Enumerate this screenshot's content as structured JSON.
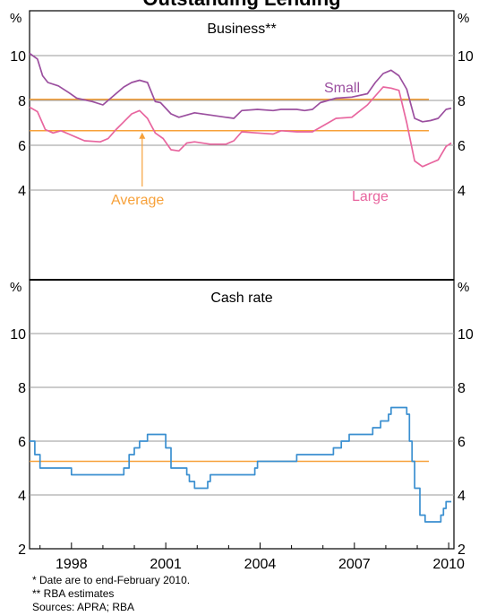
{
  "chart_data": {
    "type": "line",
    "title": "Outstanding Lending",
    "x_ticks": [
      "1998",
      "2001",
      "2004",
      "2007",
      "2010"
    ],
    "panels": [
      {
        "title": "Business**",
        "ylabel_left": "%",
        "ylabel_right": "%",
        "ylim": [
          0,
          12
        ],
        "y_ticks": [
          4,
          6,
          8,
          10
        ],
        "series": [
          {
            "name": "Small",
            "color": "#9b4f9f",
            "points": [
              [
                "1996-09",
                10.1
              ],
              [
                "1996-12",
                9.85
              ],
              [
                "1997-02",
                9.1
              ],
              [
                "1997-04",
                8.8
              ],
              [
                "1997-08",
                8.65
              ],
              [
                "1997-12",
                8.35
              ],
              [
                "1998-03",
                8.1
              ],
              [
                "1998-09",
                7.95
              ],
              [
                "1999-01",
                7.8
              ],
              [
                "1999-05",
                8.2
              ],
              [
                "1999-09",
                8.6
              ],
              [
                "1999-12",
                8.8
              ],
              [
                "2000-03",
                8.9
              ],
              [
                "2000-06",
                8.8
              ],
              [
                "2000-09",
                7.95
              ],
              [
                "2000-11",
                7.9
              ],
              [
                "2001-03",
                7.4
              ],
              [
                "2001-06",
                7.25
              ],
              [
                "2001-09",
                7.35
              ],
              [
                "2001-12",
                7.45
              ],
              [
                "2002-06",
                7.35
              ],
              [
                "2002-12",
                7.25
              ],
              [
                "2003-03",
                7.2
              ],
              [
                "2003-06",
                7.55
              ],
              [
                "2003-12",
                7.6
              ],
              [
                "2004-06",
                7.55
              ],
              [
                "2004-09",
                7.6
              ],
              [
                "2005-03",
                7.6
              ],
              [
                "2005-06",
                7.55
              ],
              [
                "2005-09",
                7.6
              ],
              [
                "2005-12",
                7.9
              ],
              [
                "2006-06",
                8.1
              ],
              [
                "2006-12",
                8.15
              ],
              [
                "2007-06",
                8.3
              ],
              [
                "2007-09",
                8.8
              ],
              [
                "2007-12",
                9.2
              ],
              [
                "2008-03",
                9.35
              ],
              [
                "2008-06",
                9.1
              ],
              [
                "2008-09",
                8.5
              ],
              [
                "2008-12",
                7.2
              ],
              [
                "2009-03",
                7.05
              ],
              [
                "2009-06",
                7.1
              ],
              [
                "2009-09",
                7.2
              ],
              [
                "2009-12",
                7.6
              ],
              [
                "2010-02",
                7.65
              ]
            ]
          },
          {
            "name": "Large",
            "color": "#e8669f",
            "points": [
              [
                "1996-09",
                7.7
              ],
              [
                "1996-12",
                7.5
              ],
              [
                "1997-03",
                6.7
              ],
              [
                "1997-06",
                6.55
              ],
              [
                "1997-09",
                6.65
              ],
              [
                "1997-12",
                6.5
              ],
              [
                "1998-03",
                6.35
              ],
              [
                "1998-06",
                6.2
              ],
              [
                "1998-12",
                6.15
              ],
              [
                "1999-03",
                6.3
              ],
              [
                "1999-06",
                6.7
              ],
              [
                "1999-09",
                7.05
              ],
              [
                "1999-12",
                7.4
              ],
              [
                "2000-03",
                7.55
              ],
              [
                "2000-06",
                7.2
              ],
              [
                "2000-09",
                6.55
              ],
              [
                "2000-12",
                6.3
              ],
              [
                "2001-03",
                5.8
              ],
              [
                "2001-06",
                5.75
              ],
              [
                "2001-09",
                6.1
              ],
              [
                "2001-12",
                6.15
              ],
              [
                "2002-06",
                6.05
              ],
              [
                "2002-12",
                6.05
              ],
              [
                "2003-03",
                6.2
              ],
              [
                "2003-06",
                6.6
              ],
              [
                "2003-12",
                6.55
              ],
              [
                "2004-06",
                6.5
              ],
              [
                "2004-09",
                6.65
              ],
              [
                "2005-03",
                6.6
              ],
              [
                "2005-09",
                6.6
              ],
              [
                "2005-12",
                6.8
              ],
              [
                "2006-06",
                7.2
              ],
              [
                "2006-12",
                7.25
              ],
              [
                "2007-06",
                7.8
              ],
              [
                "2007-09",
                8.2
              ],
              [
                "2007-12",
                8.6
              ],
              [
                "2008-03",
                8.55
              ],
              [
                "2008-06",
                8.45
              ],
              [
                "2008-09",
                7.0
              ],
              [
                "2008-12",
                5.3
              ],
              [
                "2009-03",
                5.05
              ],
              [
                "2009-06",
                5.2
              ],
              [
                "2009-09",
                5.35
              ],
              [
                "2009-12",
                5.95
              ],
              [
                "2010-02",
                6.1
              ]
            ]
          }
        ],
        "averages": [
          {
            "name": "Average",
            "value": 8.05
          },
          {
            "value": 6.65
          }
        ],
        "annotations": [
          {
            "text": "Small",
            "series": "Small"
          },
          {
            "text": "Large",
            "series": "Large"
          },
          {
            "text": "Average",
            "arrow": true
          }
        ]
      },
      {
        "title": "Cash rate",
        "ylabel_left": "%",
        "ylabel_right": "%",
        "ylim": [
          2,
          12
        ],
        "y_ticks": [
          4,
          6,
          8,
          10
        ],
        "step": true,
        "series": [
          {
            "name": "Cash rate",
            "color": "#3a8fd0",
            "points": [
              [
                "1996-09",
                6.0
              ],
              [
                "1996-11",
                5.5
              ],
              [
                "1997-01",
                5.0
              ],
              [
                "1997-12",
                5.0
              ],
              [
                "1998-01",
                4.75
              ],
              [
                "1999-06",
                4.75
              ],
              [
                "1999-09",
                5.0
              ],
              [
                "1999-11",
                5.5
              ],
              [
                "2000-01",
                5.75
              ],
              [
                "2000-03",
                6.0
              ],
              [
                "2000-06",
                6.25
              ],
              [
                "2000-12",
                6.25
              ],
              [
                "2001-01",
                5.75
              ],
              [
                "2001-03",
                5.0
              ],
              [
                "2001-09",
                4.75
              ],
              [
                "2001-10",
                4.5
              ],
              [
                "2001-12",
                4.25
              ],
              [
                "2002-05",
                4.5
              ],
              [
                "2002-06",
                4.75
              ],
              [
                "2003-11",
                5.0
              ],
              [
                "2003-12",
                5.25
              ],
              [
                "2005-03",
                5.5
              ],
              [
                "2006-05",
                5.75
              ],
              [
                "2006-08",
                6.0
              ],
              [
                "2006-11",
                6.25
              ],
              [
                "2007-08",
                6.5
              ],
              [
                "2007-11",
                6.75
              ],
              [
                "2008-02",
                7.0
              ],
              [
                "2008-03",
                7.25
              ],
              [
                "2008-09",
                7.0
              ],
              [
                "2008-10",
                6.0
              ],
              [
                "2008-11",
                5.25
              ],
              [
                "2008-12",
                4.25
              ],
              [
                "2009-02",
                3.25
              ],
              [
                "2009-04",
                3.0
              ],
              [
                "2009-10",
                3.25
              ],
              [
                "2009-11",
                3.5
              ],
              [
                "2009-12",
                3.75
              ],
              [
                "2010-02",
                3.75
              ]
            ]
          }
        ],
        "averages": [
          {
            "value": 5.25
          }
        ]
      }
    ],
    "colors": {
      "average": "#f7a13a",
      "axis": "#000000",
      "grid": "#9a9a9a"
    }
  },
  "notes": [
    "*  Date are to end-February 2010.",
    "** RBA estimates",
    "Sources: APRA; RBA"
  ]
}
